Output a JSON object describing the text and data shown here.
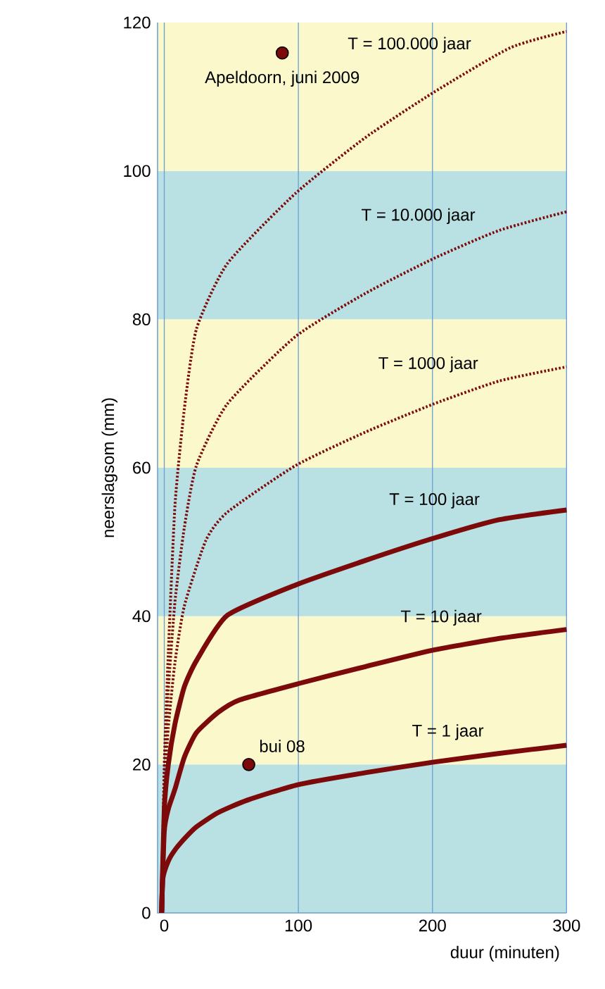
{
  "chart_data": {
    "type": "line",
    "xlabel": "duur (minuten)",
    "ylabel": "neerslagsom (mm)",
    "xlim": [
      -5,
      300
    ],
    "ylim": [
      0,
      120
    ],
    "xticks": [
      0,
      100,
      200,
      300
    ],
    "yticks": [
      0,
      20,
      40,
      60,
      80,
      100,
      120
    ],
    "grid": "x",
    "marker": "none",
    "bands": [
      {
        "axis": "y",
        "from": 0,
        "to": 20,
        "color": "#b9e0e3"
      },
      {
        "axis": "y",
        "from": 20,
        "to": 40,
        "color": "#fbf8cc"
      },
      {
        "axis": "y",
        "from": 40,
        "to": 60,
        "color": "#b9e0e3"
      },
      {
        "axis": "y",
        "from": 60,
        "to": 80,
        "color": "#fbf8cc"
      },
      {
        "axis": "y",
        "from": 80,
        "to": 100,
        "color": "#b9e0e3"
      },
      {
        "axis": "y",
        "from": 100,
        "to": 120,
        "color": "#fbf8cc"
      }
    ],
    "series": [
      {
        "name": "T = 100.000 jaar",
        "color": "#7d0a0a",
        "line_style": "dotted",
        "x": [
          -2,
          0,
          3,
          8,
          15,
          24,
          47,
          98,
          150,
          201,
          258,
          300
        ],
        "values": [
          0,
          20,
          35,
          55,
          68,
          78.7,
          87.5,
          97,
          104.5,
          110.6,
          116.6,
          118.8
        ]
      },
      {
        "name": "T = 10.000 jaar",
        "color": "#7d0a0a",
        "line_style": "dotted",
        "x": [
          -2,
          0,
          3,
          8,
          15,
          24,
          47,
          98,
          150,
          201,
          250,
          300
        ],
        "values": [
          0,
          18,
          30,
          42,
          52,
          60.3,
          68.6,
          77.7,
          83.5,
          88.2,
          92,
          94.5
        ]
      },
      {
        "name": "T = 1000 jaar",
        "color": "#7d0a0a",
        "line_style": "dotted",
        "x": [
          -2,
          0,
          3,
          8,
          15,
          31,
          47,
          98,
          150,
          201,
          250,
          300
        ],
        "values": [
          0,
          16,
          25,
          33.8,
          41.4,
          50.2,
          54,
          60.3,
          64.8,
          68.6,
          71.7,
          73.6
        ]
      },
      {
        "name": "T = 100 jaar",
        "color": "#7d0a0a",
        "line_style": "solid",
        "x": [
          -2,
          0,
          3,
          8,
          15,
          24,
          47,
          98,
          150,
          201,
          250,
          300
        ],
        "values": [
          0,
          14,
          20,
          25.5,
          30.5,
          34,
          40.1,
          44.2,
          47.5,
          50.5,
          53,
          54.3
        ]
      },
      {
        "name": "T = 10 jaar",
        "color": "#7d0a0a",
        "line_style": "solid",
        "x": [
          -2,
          0,
          3,
          8,
          15,
          24,
          40,
          56,
          100,
          150,
          200,
          250,
          300
        ],
        "values": [
          0,
          11,
          14,
          16.7,
          21,
          24.3,
          27,
          28.7,
          30.9,
          33.2,
          35.4,
          37,
          38.2
        ]
      },
      {
        "name": "T = 1 jaar",
        "color": "#7d0a0a",
        "line_style": "solid",
        "x": [
          -2,
          -1,
          3,
          8,
          15,
          24,
          40,
          62,
          100,
          150,
          200,
          250,
          300
        ],
        "values": [
          0,
          4.7,
          7,
          8.5,
          10,
          11.6,
          13.5,
          15.2,
          17.3,
          18.9,
          20.3,
          21.5,
          22.6
        ]
      },
      {
        "type": "scatter",
        "marker": "circle",
        "color": "#7d0a0a",
        "x": [
          88,
          63
        ],
        "values": [
          115.9,
          20
        ]
      }
    ],
    "annotations": [
      {
        "text": "Apeldoorn, juni 2009",
        "x": 88,
        "y": 115.9
      },
      {
        "text": "bui 08",
        "x": 63,
        "y": 20
      }
    ]
  }
}
